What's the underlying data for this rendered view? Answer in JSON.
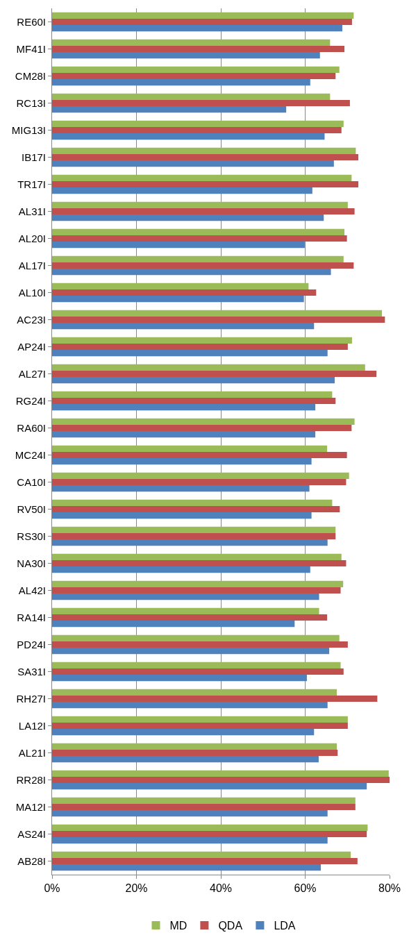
{
  "chart_data": {
    "type": "bar",
    "orientation": "horizontal",
    "categories": [
      "RE60I",
      "MF41I",
      "CM28I",
      "RC13I",
      "MIG13I",
      "IB17I",
      "TR17I",
      "AL31I",
      "AL20I",
      "AL17I",
      "AL10I",
      "AC23I",
      "AP24I",
      "AL27I",
      "RG24I",
      "RA60I",
      "MC24I",
      "CA10I",
      "RV50I",
      "RS30I",
      "NA30I",
      "AL42I",
      "RA14I",
      "PD24I",
      "SA31I",
      "RH27I",
      "LA12I",
      "AL21I",
      "RR28I",
      "MA12I",
      "AS24I",
      "AB28I"
    ],
    "series": [
      {
        "name": "MD",
        "color": "#9bbb59",
        "values": [
          71.5,
          65.9,
          68.1,
          65.9,
          69.1,
          72.0,
          71.0,
          70.1,
          69.3,
          69.1,
          60.8,
          78.2,
          71.1,
          74.2,
          66.4,
          71.7,
          65.2,
          70.4,
          66.4,
          67.2,
          68.6,
          69.0,
          63.3,
          68.1,
          68.4,
          67.5,
          70.1,
          67.5,
          79.8,
          71.9,
          74.8,
          70.8
        ]
      },
      {
        "name": "QDA",
        "color": "#c0504d",
        "values": [
          71.1,
          69.3,
          67.2,
          70.6,
          68.6,
          72.6,
          72.6,
          71.7,
          69.9,
          71.5,
          62.6,
          78.9,
          70.1,
          76.9,
          67.2,
          71.0,
          69.9,
          69.7,
          68.2,
          67.2,
          69.7,
          68.4,
          65.2,
          70.1,
          69.1,
          77.1,
          70.1,
          67.7,
          80,
          71.9,
          74.6,
          72.4
        ]
      },
      {
        "name": "LDA",
        "color": "#4f81bd",
        "values": [
          68.8,
          63.5,
          61.2,
          55.5,
          64.6,
          66.8,
          61.7,
          64.4,
          59.9,
          66.1,
          59.7,
          62.1,
          65.3,
          67.0,
          62.4,
          62.4,
          61.5,
          61.0,
          61.5,
          65.3,
          61.2,
          63.3,
          57.5,
          65.7,
          60.4,
          65.3,
          62.1,
          63.2,
          74.6,
          65.3,
          65.3,
          63.7
        ]
      }
    ],
    "xlim": [
      0,
      80
    ],
    "xticks": [
      {
        "value": 0,
        "label": "0%"
      },
      {
        "value": 20,
        "label": "20%"
      },
      {
        "value": 40,
        "label": "40%"
      },
      {
        "value": 60,
        "label": "60%"
      },
      {
        "value": 80,
        "label": "80%"
      }
    ],
    "grid": "x",
    "legend": "bottom"
  }
}
